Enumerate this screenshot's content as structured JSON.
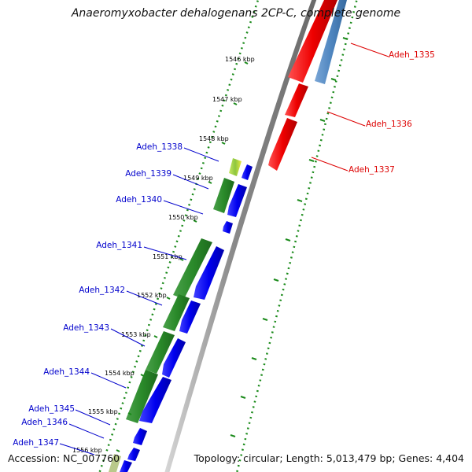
{
  "title": "Anaeromyxobacter dehalogenans 2CP-C, complete genome",
  "footer": {
    "accession": "Accession: NC_007760",
    "topology": "Topology: circular; Length: 5,013,479 bp; Genes: 4,404"
  },
  "colors": {
    "forward_strand": "#0000ee",
    "forward_accent": "#2a8a2a",
    "reverse_strand": "#ee0000",
    "reverse_accent": "#4f86c0",
    "backbone": "#888888",
    "ticks": "#1a8a1a",
    "forward_label": "#0000cc",
    "reverse_label": "#dd0000"
  },
  "ticks": [
    "1546 kbp",
    "1547 kbp",
    "1548 kbp",
    "1549 kbp",
    "1550 kbp",
    "1551 kbp",
    "1552 kbp",
    "1553 kbp",
    "1554 kbp",
    "1555 kbp",
    "1556 kbp"
  ],
  "reverse_genes": [
    "Adeh_1335",
    "Adeh_1336",
    "Adeh_1337"
  ],
  "forward_genes": [
    "Adeh_1338",
    "Adeh_1339",
    "Adeh_1340",
    "Adeh_1341",
    "Adeh_1342",
    "Adeh_1343",
    "Adeh_1344",
    "Adeh_1345",
    "Adeh_1346",
    "Adeh_1347"
  ]
}
